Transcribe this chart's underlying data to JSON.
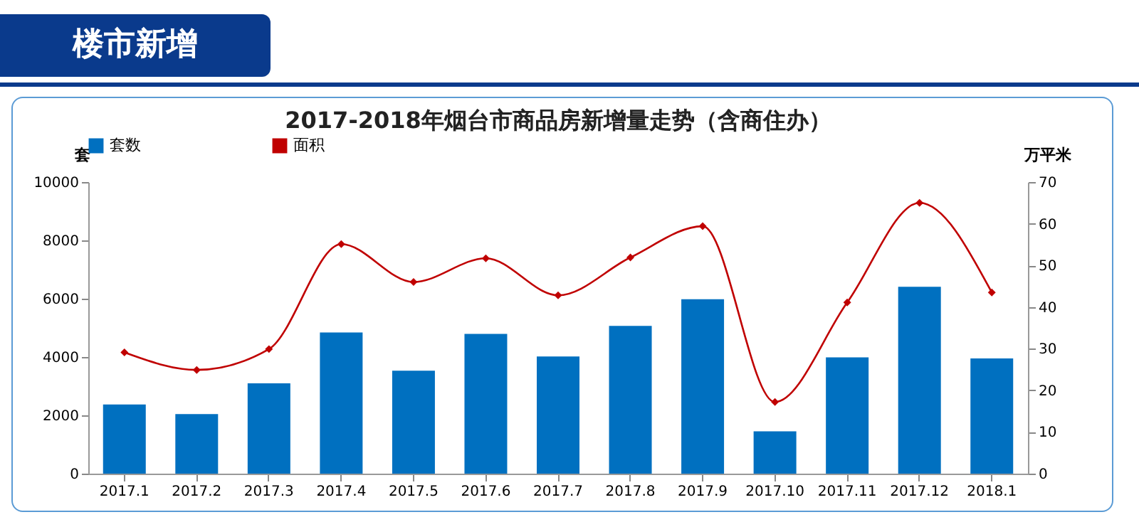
{
  "chart_data": {
    "type": "bar",
    "title": "2017-2018年烟台市商品房新增量走势（含商住办）",
    "annotations": [
      "楼市新增"
    ],
    "ylabel": "套",
    "y2label": "万平米",
    "categories": [
      "2017.1",
      "2017.2",
      "2017.3",
      "2017.4",
      "2017.5",
      "2017.6",
      "2017.7",
      "2017.8",
      "2017.9",
      "2017.10",
      "2017.11",
      "2017.12",
      "2018.1"
    ],
    "series": [
      {
        "name": "套数",
        "color": "#0070c0",
        "values": [
          2370,
          2040,
          3100,
          4840,
          3530,
          4790,
          4020,
          5070,
          5980,
          1450,
          3990,
          6410,
          3950
        ]
      },
      {
        "name": "面积",
        "type": "line",
        "axis": "y2",
        "color": "#c00000",
        "values": [
          29.1,
          24.9,
          29.9,
          55.1,
          46.0,
          51.7,
          42.8,
          51.9,
          59.4,
          17.2,
          41.1,
          65.0,
          43.5
        ]
      }
    ],
    "ylim": [
      0,
      10000
    ],
    "yticks": [
      0,
      2000,
      4000,
      6000,
      8000,
      10000
    ],
    "y2lim": [
      0,
      70
    ],
    "y2ticks": [
      0,
      10,
      20,
      30,
      40,
      50,
      60,
      70
    ],
    "legend": "top",
    "marker": "diamond"
  }
}
